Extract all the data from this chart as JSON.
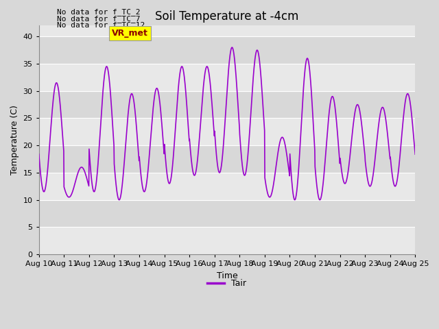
{
  "title": "Soil Temperature at -4cm",
  "xlabel": "Time",
  "ylabel": "Temperature (C)",
  "ylim": [
    0,
    42
  ],
  "yticks": [
    0,
    5,
    10,
    15,
    20,
    25,
    30,
    35,
    40
  ],
  "x_labels": [
    "Aug 10",
    "Aug 11",
    "Aug 12",
    "Aug 13",
    "Aug 14",
    "Aug 15",
    "Aug 16",
    "Aug 17",
    "Aug 18",
    "Aug 19",
    "Aug 20",
    "Aug 21",
    "Aug 22",
    "Aug 23",
    "Aug 24",
    "Aug 25"
  ],
  "line_color": "#9900cc",
  "line_width": 1.2,
  "bg_color": "#d8d8d8",
  "plot_bg_color": "#e8e8e8",
  "band_color_light": "#e8e8e8",
  "band_color_dark": "#d8d8d8",
  "grid_color": "#d0d0d0",
  "legend_label": "Tair",
  "legend_line_color": "#9900cc",
  "ann_texts": [
    "No data for f_TC_2",
    "No data for f_TC_7",
    "No data for f_TC_12"
  ],
  "vr_met_text": "VR_met",
  "title_fontsize": 12,
  "label_fontsize": 9,
  "tick_fontsize": 8,
  "daily_mins": [
    11.5,
    10.5,
    11.5,
    10.0,
    11.5,
    13.0,
    14.5,
    15.0,
    14.5,
    10.5,
    10.0,
    10.0,
    13.0,
    12.5,
    12.5
  ],
  "daily_maxs": [
    31.5,
    16.0,
    34.5,
    29.5,
    30.5,
    34.5,
    34.5,
    38.0,
    37.5,
    21.5,
    36.0,
    29.0,
    27.5,
    27.0,
    29.5
  ]
}
